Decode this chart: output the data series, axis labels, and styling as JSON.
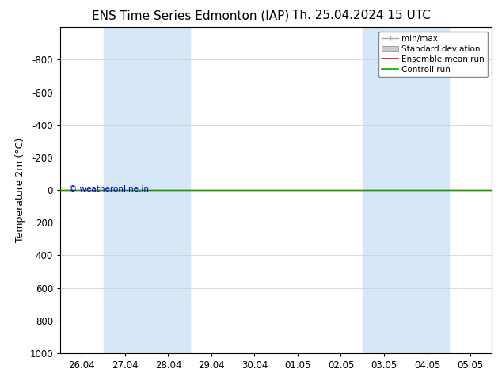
{
  "title_left": "ENS Time Series Edmonton (IAP)",
  "title_right": "Th. 25.04.2024 15 UTC",
  "ylabel": "Temperature 2m (°C)",
  "watermark": "© weatheronline.in",
  "background_color": "#ffffff",
  "plot_bg_color": "#ffffff",
  "ylim_bottom": 1000,
  "ylim_top": -1000,
  "yticks": [
    -800,
    -600,
    -400,
    -200,
    0,
    200,
    400,
    600,
    800,
    1000
  ],
  "xlim_left": 0,
  "xlim_right": 9,
  "xtick_labels": [
    "26.04",
    "27.04",
    "28.04",
    "29.04",
    "30.04",
    "01.05",
    "02.05",
    "03.05",
    "04.05",
    "05.05"
  ],
  "xtick_positions": [
    0,
    1,
    2,
    3,
    4,
    5,
    6,
    7,
    8,
    9
  ],
  "shaded_bands": [
    {
      "x_start": 1,
      "x_end": 2,
      "color": "#d6e8f7"
    },
    {
      "x_start": 2,
      "x_end": 3,
      "color": "#d6e8f7"
    },
    {
      "x_start": 7,
      "x_end": 8,
      "color": "#d6e8f7"
    },
    {
      "x_start": 8,
      "x_end": 9,
      "color": "#d6e8f7"
    }
  ],
  "green_line_y": 0,
  "green_line_color": "#00aa00",
  "red_line_color": "#ff0000",
  "legend_minmax_color": "#aaaaaa",
  "legend_std_color": "#cccccc",
  "grid_color": "#cccccc",
  "spine_color": "#000000",
  "tick_label_fontsize": 8.5,
  "axis_label_fontsize": 9,
  "title_fontsize": 11,
  "legend_fontsize": 7.5
}
